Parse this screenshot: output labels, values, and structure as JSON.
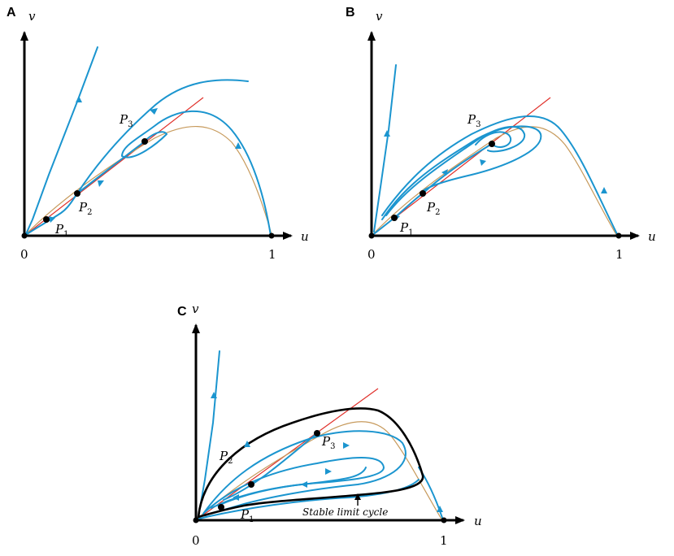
{
  "colors": {
    "trajectory": "#1b95cf",
    "nullcline_v": "#e0302a",
    "nullcline_u": "#c79a5c",
    "axis": "#000000",
    "limit_cycle": "#000000"
  },
  "panels": [
    {
      "letter": "A",
      "x_axis_label": "u",
      "y_axis_label": "v",
      "origin_label": "0",
      "x_tick_label": "1",
      "points": [
        {
          "name": "P",
          "sub": "1"
        },
        {
          "name": "P",
          "sub": "2"
        },
        {
          "name": "P",
          "sub": "3"
        }
      ]
    },
    {
      "letter": "B",
      "x_axis_label": "u",
      "y_axis_label": "v",
      "origin_label": "0",
      "x_tick_label": "1",
      "points": [
        {
          "name": "P",
          "sub": "1"
        },
        {
          "name": "P",
          "sub": "2"
        },
        {
          "name": "P",
          "sub": "3"
        }
      ]
    },
    {
      "letter": "C",
      "x_axis_label": "u",
      "y_axis_label": "v",
      "origin_label": "0",
      "x_tick_label": "1",
      "points": [
        {
          "name": "P",
          "sub": "1"
        },
        {
          "name": "P",
          "sub": "2"
        },
        {
          "name": "P",
          "sub": "3"
        }
      ],
      "annotation": "Stable limit cycle"
    }
  ]
}
